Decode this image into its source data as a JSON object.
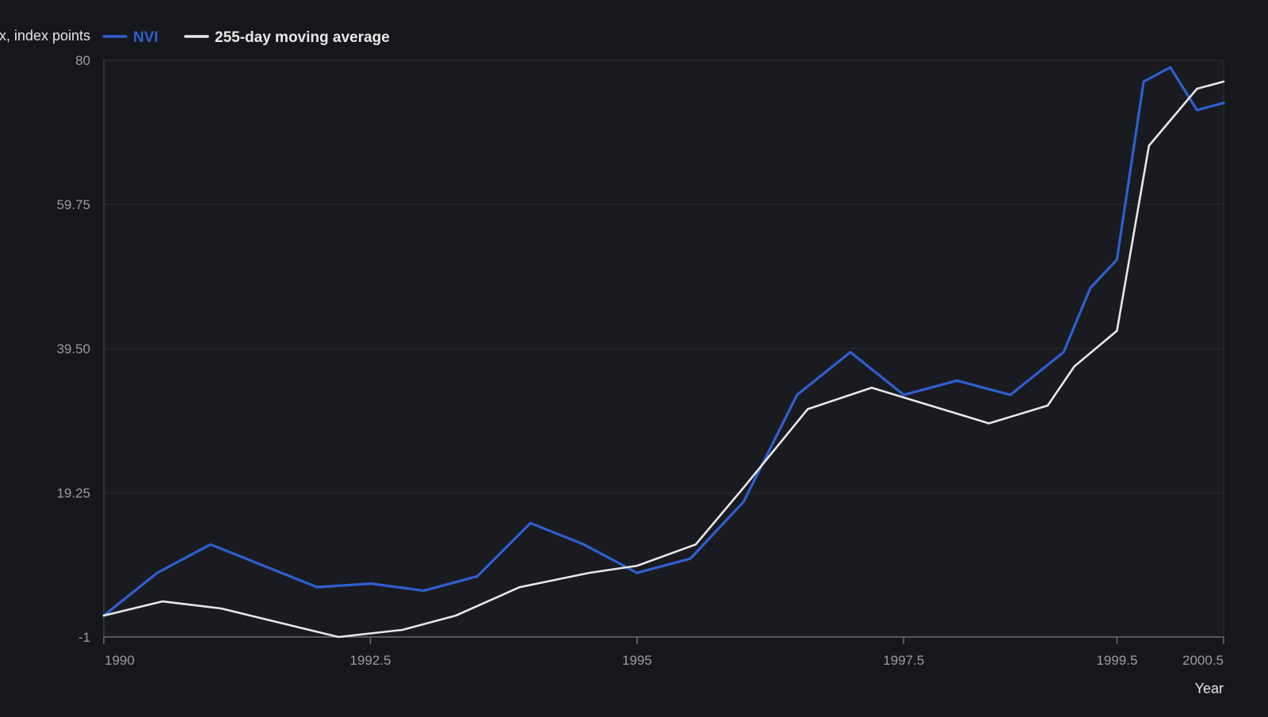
{
  "chart_data": {
    "type": "line",
    "title": "",
    "xlabel": "Year",
    "ylabel": "Index, index points",
    "xlim": [
      1990,
      2000.5
    ],
    "ylim": [
      -1,
      80
    ],
    "x_ticks": [
      1990,
      1992.5,
      1995,
      1997.5,
      1999.5,
      2000.5
    ],
    "x_tick_labels": [
      "1990",
      "1992.5",
      "1995",
      "1997.5",
      "1999.5",
      "2000.5"
    ],
    "y_ticks": [
      -1,
      19.25,
      39.5,
      59.75,
      80
    ],
    "y_tick_labels": [
      "-1",
      "19.25",
      "39.50",
      "59.75",
      "80"
    ],
    "grid": true,
    "legend_position": "top-left",
    "series": [
      {
        "name": "NVI",
        "color": "#2f5fd0",
        "x": [
          1990,
          1990.5,
          1991,
          1992,
          1992.5,
          1993,
          1993.5,
          1994,
          1994.5,
          1995,
          1995.5,
          1996,
          1996.5,
          1997,
          1997.5,
          1998,
          1998.5,
          1999,
          1999.25,
          1999.5,
          1999.75,
          2000,
          2000.25,
          2000.5
        ],
        "values": [
          2,
          8,
          12,
          6,
          6.5,
          5.5,
          7.5,
          15,
          12,
          8,
          10,
          18,
          33,
          39,
          33,
          35,
          33,
          39,
          48,
          52,
          77,
          79,
          73,
          74
        ]
      },
      {
        "name": "255-day moving average",
        "color": "#e8e8e8",
        "x": [
          1990,
          1990.55,
          1991.1,
          1992.2,
          1992.8,
          1993.3,
          1993.9,
          1994.55,
          1995,
          1995.55,
          1996,
          1996.6,
          1997.2,
          1997.75,
          1998.3,
          1998.85,
          1999.1,
          1999.5,
          1999.8,
          2000.25,
          2000.5
        ],
        "values": [
          2,
          4,
          3,
          -1,
          0,
          2,
          6,
          8,
          9,
          12,
          20,
          31,
          34,
          31.5,
          29,
          31.5,
          37,
          42,
          68,
          76,
          77
        ]
      }
    ]
  }
}
